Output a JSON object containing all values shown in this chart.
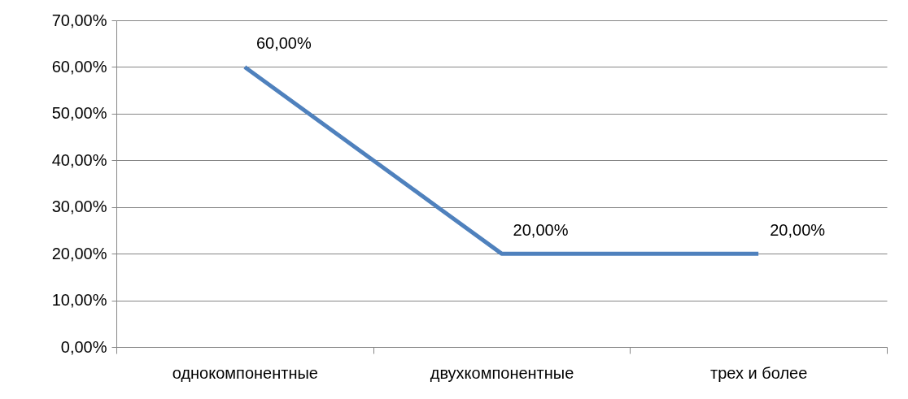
{
  "chart_data": {
    "type": "line",
    "categories": [
      "однокомпонентные",
      "двухкомпонентные",
      "трех и более"
    ],
    "series": [
      {
        "color": "#4f81bd",
        "values": [
          60,
          20,
          20
        ],
        "value_labels": [
          "60,00%",
          "20,00%",
          "20,00%"
        ]
      }
    ],
    "ylim": [
      0,
      70
    ],
    "yticks": [
      {
        "value": 0,
        "label": "0,00%"
      },
      {
        "value": 10,
        "label": "10,00%"
      },
      {
        "value": 20,
        "label": "20,00%"
      },
      {
        "value": 30,
        "label": "30,00%"
      },
      {
        "value": 40,
        "label": "40,00%"
      },
      {
        "value": 50,
        "label": "50,00%"
      },
      {
        "value": 60,
        "label": "60,00%"
      },
      {
        "value": 70,
        "label": "70,00%"
      }
    ],
    "grid": "y"
  }
}
